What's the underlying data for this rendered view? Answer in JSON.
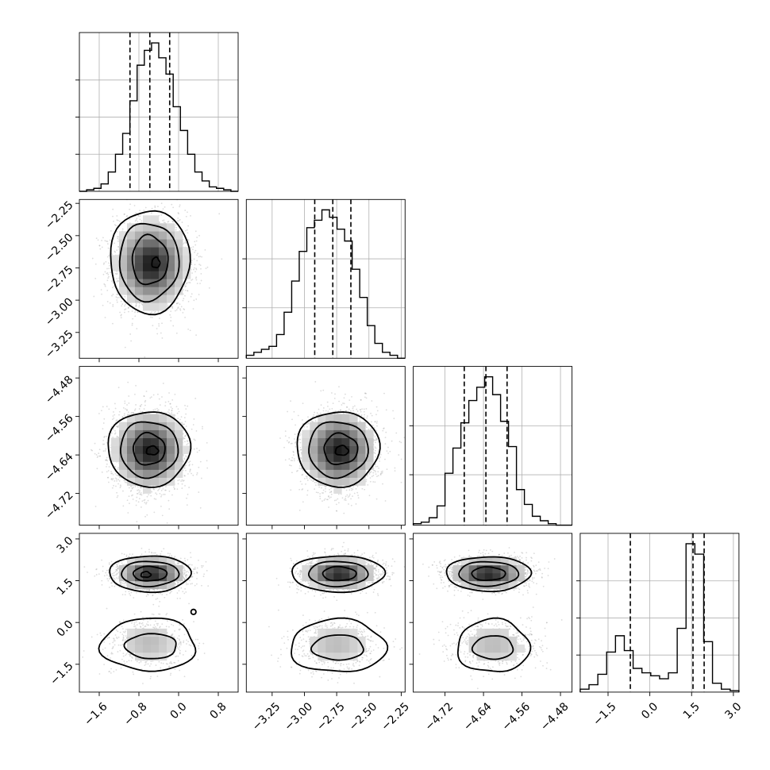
{
  "chart_data": {
    "type": "corner",
    "parameters": 4,
    "grid": true,
    "axes": [
      {
        "range": [
          -2.0,
          1.2
        ],
        "ticks": [
          -1.6,
          -0.8,
          0.0,
          0.8
        ],
        "tick_labels": [
          "−1.6",
          "−0.8",
          "0.0",
          "0.8"
        ],
        "quantiles": [
          -0.98,
          -0.58,
          -0.18
        ]
      },
      {
        "range": [
          -3.45,
          -2.22
        ],
        "ticks": [
          -3.25,
          -3.0,
          -2.75,
          -2.5,
          -2.25
        ],
        "tick_labels": [
          "−3.25",
          "−3.00",
          "−2.75",
          "−2.50",
          "−2.25"
        ],
        "quantiles": [
          -2.92,
          -2.78,
          -2.64
        ]
      },
      {
        "range": [
          -4.786,
          -4.456
        ],
        "ticks": [
          -4.72,
          -4.64,
          -4.56,
          -4.48
        ],
        "tick_labels": [
          "−4.72",
          "−4.64",
          "−4.56",
          "−4.48"
        ],
        "quantiles": [
          -4.68,
          -4.635,
          -4.591
        ]
      },
      {
        "range": [
          -2.5,
          3.2
        ],
        "ticks": [
          -1.5,
          0.0,
          1.5,
          3.0
        ],
        "tick_labels": [
          "−1.5",
          "0.0",
          "1.5",
          "3.0"
        ],
        "quantiles": [
          -0.7,
          1.55,
          1.95
        ]
      }
    ],
    "histograms": [
      {
        "lo": -2.0,
        "hi": 1.2,
        "ymax": 1.0,
        "yticks": [
          0.25,
          0.5,
          0.75
        ],
        "counts": [
          0.0,
          0.01,
          0.02,
          0.05,
          0.13,
          0.25,
          0.39,
          0.61,
          0.85,
          0.95,
          1.0,
          0.9,
          0.79,
          0.57,
          0.41,
          0.25,
          0.13,
          0.07,
          0.03,
          0.02,
          0.01,
          0.0
        ]
      },
      {
        "lo": -3.45,
        "hi": -2.22,
        "ymax": 1.0,
        "yticks": [
          0.34,
          0.67
        ],
        "counts": [
          0.02,
          0.04,
          0.06,
          0.08,
          0.16,
          0.31,
          0.52,
          0.72,
          0.88,
          0.93,
          1.0,
          0.95,
          0.87,
          0.79,
          0.6,
          0.41,
          0.22,
          0.1,
          0.04,
          0.02,
          0.0
        ]
      },
      {
        "lo": -4.786,
        "hi": -4.456,
        "ymax": 1.0,
        "yticks": [
          0.34,
          0.67
        ],
        "counts": [
          0.01,
          0.02,
          0.05,
          0.13,
          0.35,
          0.52,
          0.69,
          0.84,
          0.93,
          1.0,
          0.88,
          0.7,
          0.53,
          0.24,
          0.14,
          0.06,
          0.03,
          0.01,
          0.0,
          0.0
        ]
      },
      {
        "lo": -2.5,
        "hi": 3.2,
        "ymax": 1.0,
        "yticks": [
          0.25,
          0.5,
          0.75
        ],
        "counts": [
          0.02,
          0.05,
          0.12,
          0.27,
          0.38,
          0.28,
          0.16,
          0.13,
          0.11,
          0.09,
          0.13,
          0.43,
          1.0,
          0.93,
          0.34,
          0.06,
          0.02,
          0.01
        ]
      }
    ],
    "joint": [
      {
        "x": 0,
        "y": 1,
        "modes": [
          {
            "cx": -0.55,
            "cy": -2.72,
            "sx": 0.36,
            "sy": 0.17,
            "w": 1.0
          }
        ],
        "rings": [
          {
            "cx": -0.58,
            "cy": -2.7,
            "ax": 0.8,
            "ay": 0.4,
            "wob": 0.04
          },
          {
            "cx": -0.6,
            "cy": -2.7,
            "ax": 0.6,
            "ay": 0.3,
            "wob": 0.05
          },
          {
            "cx": -0.58,
            "cy": -2.69,
            "ax": 0.36,
            "ay": 0.19,
            "wob": 0.06
          },
          {
            "cx": -0.46,
            "cy": -2.71,
            "ax": 0.08,
            "ay": 0.04,
            "wob": 0.1
          }
        ]
      },
      {
        "x": 0,
        "y": 2,
        "modes": [
          {
            "cx": -0.58,
            "cy": -4.63,
            "sx": 0.36,
            "sy": 0.04,
            "w": 1.0
          }
        ],
        "rings": [
          {
            "cx": -0.6,
            "cy": -4.627,
            "ax": 0.83,
            "ay": 0.078,
            "wob": 0.04
          },
          {
            "cx": -0.6,
            "cy": -4.628,
            "ax": 0.58,
            "ay": 0.058,
            "wob": 0.05
          },
          {
            "cx": -0.6,
            "cy": -4.628,
            "ax": 0.32,
            "ay": 0.033,
            "wob": 0.06
          },
          {
            "cx": -0.53,
            "cy": -4.631,
            "ax": 0.12,
            "ay": 0.009,
            "wob": 0.1
          }
        ]
      },
      {
        "x": 1,
        "y": 2,
        "modes": [
          {
            "cx": -2.73,
            "cy": -4.63,
            "sx": 0.14,
            "sy": 0.04,
            "w": 1.0
          }
        ],
        "rings": [
          {
            "cx": -2.74,
            "cy": -4.627,
            "ax": 0.32,
            "ay": 0.078,
            "wob": 0.04
          },
          {
            "cx": -2.74,
            "cy": -4.628,
            "ax": 0.23,
            "ay": 0.058,
            "wob": 0.05
          },
          {
            "cx": -2.72,
            "cy": -4.628,
            "ax": 0.13,
            "ay": 0.032,
            "wob": 0.07
          },
          {
            "cx": -2.71,
            "cy": -4.631,
            "ax": 0.05,
            "ay": 0.01,
            "wob": 0.1
          }
        ]
      },
      {
        "x": 0,
        "y": 3,
        "modes": [
          {
            "cx": -0.55,
            "cy": 1.75,
            "sx": 0.35,
            "sy": 0.28,
            "w": 1.0
          },
          {
            "cx": -0.6,
            "cy": -0.75,
            "sx": 0.4,
            "sy": 0.45,
            "w": 0.28
          }
        ],
        "rings": [
          {
            "cx": -0.58,
            "cy": 1.75,
            "ax": 0.82,
            "ay": 0.65,
            "wob": 0.04
          },
          {
            "cx": -0.58,
            "cy": 1.75,
            "ax": 0.58,
            "ay": 0.45,
            "wob": 0.04
          },
          {
            "cx": -0.58,
            "cy": 1.75,
            "ax": 0.34,
            "ay": 0.26,
            "wob": 0.05
          },
          {
            "cx": -0.66,
            "cy": 1.72,
            "ax": 0.1,
            "ay": 0.1,
            "wob": 0.1
          },
          {
            "cx": -0.6,
            "cy": -0.8,
            "ax": 0.95,
            "ay": 0.95,
            "wob": 0.07
          },
          {
            "cx": -0.55,
            "cy": -0.85,
            "ax": 0.52,
            "ay": 0.45,
            "wob": 0.05
          },
          {
            "cx": 0.3,
            "cy": 0.38,
            "ax": 0.05,
            "ay": 0.09,
            "wob": 0.0
          }
        ]
      },
      {
        "x": 1,
        "y": 3,
        "modes": [
          {
            "cx": -2.73,
            "cy": 1.75,
            "sx": 0.14,
            "sy": 0.28,
            "w": 1.0
          },
          {
            "cx": -2.75,
            "cy": -0.8,
            "sx": 0.16,
            "sy": 0.45,
            "w": 0.28
          }
        ],
        "rings": [
          {
            "cx": -2.74,
            "cy": 1.75,
            "ax": 0.36,
            "ay": 0.65,
            "wob": 0.04
          },
          {
            "cx": -2.74,
            "cy": 1.75,
            "ax": 0.23,
            "ay": 0.45,
            "wob": 0.04
          },
          {
            "cx": -2.73,
            "cy": 1.75,
            "ax": 0.13,
            "ay": 0.25,
            "wob": 0.05
          },
          {
            "cx": -2.74,
            "cy": -0.85,
            "ax": 0.37,
            "ay": 0.95,
            "wob": 0.07
          },
          {
            "cx": -2.74,
            "cy": -0.9,
            "ax": 0.2,
            "ay": 0.45,
            "wob": 0.05
          }
        ]
      },
      {
        "x": 2,
        "y": 3,
        "modes": [
          {
            "cx": -4.63,
            "cy": 1.75,
            "sx": 0.04,
            "sy": 0.28,
            "w": 1.0
          },
          {
            "cx": -4.62,
            "cy": -0.8,
            "sx": 0.045,
            "sy": 0.45,
            "w": 0.28
          }
        ],
        "rings": [
          {
            "cx": -4.63,
            "cy": 1.75,
            "ax": 0.088,
            "ay": 0.62,
            "wob": 0.04
          },
          {
            "cx": -4.63,
            "cy": 1.75,
            "ax": 0.062,
            "ay": 0.44,
            "wob": 0.04
          },
          {
            "cx": -4.63,
            "cy": 1.75,
            "ax": 0.035,
            "ay": 0.24,
            "wob": 0.05
          },
          {
            "cx": -4.62,
            "cy": -0.85,
            "ax": 0.075,
            "ay": 0.95,
            "wob": 0.07
          },
          {
            "cx": -4.62,
            "cy": -0.9,
            "ax": 0.042,
            "ay": 0.42,
            "wob": 0.05
          }
        ]
      }
    ]
  }
}
